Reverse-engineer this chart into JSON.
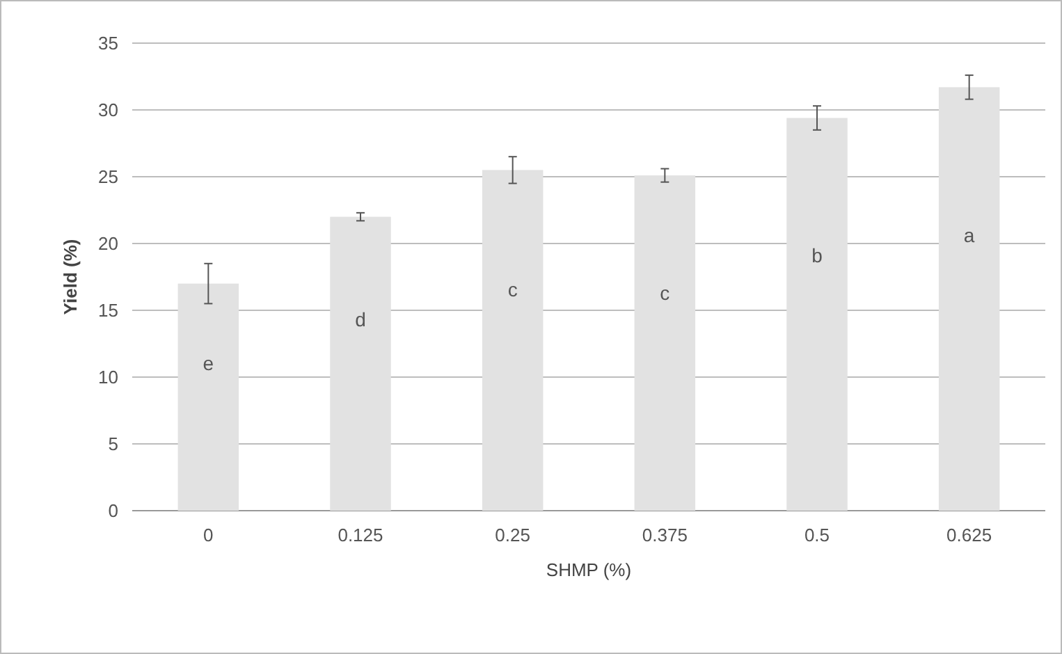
{
  "chart_data": {
    "type": "bar",
    "xlabel": "SHMP (%)",
    "ylabel": "Yield (%)",
    "categories": [
      "0",
      "0.125",
      "0.25",
      "0.375",
      "0.5",
      "0.625"
    ],
    "values": [
      17,
      22,
      25.5,
      25.1,
      29.4,
      31.7
    ],
    "errors": [
      1.5,
      0.3,
      1,
      0.5,
      0.9,
      0.9
    ],
    "color": "#e2e2e2",
    "ylim": [
      0,
      35
    ],
    "yticks": [
      0,
      5,
      10,
      15,
      20,
      25,
      30,
      35
    ],
    "grid": "y",
    "annotations": [
      "e",
      "d",
      "c",
      "c",
      "b",
      "a"
    ]
  }
}
